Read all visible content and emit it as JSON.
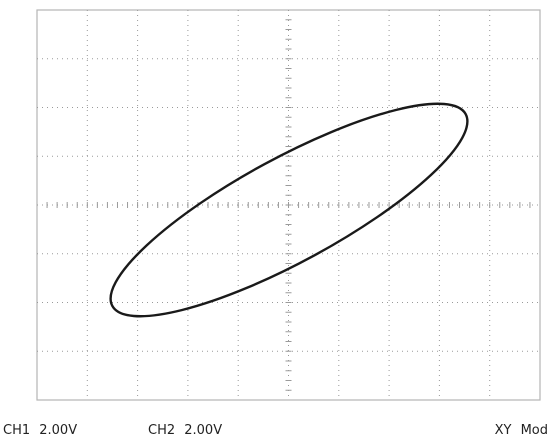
{
  "status_bar": {
    "ch1": "CH1 2.00V",
    "ch2": "CH2 2.00V",
    "mode": "XY Mod"
  }
}
